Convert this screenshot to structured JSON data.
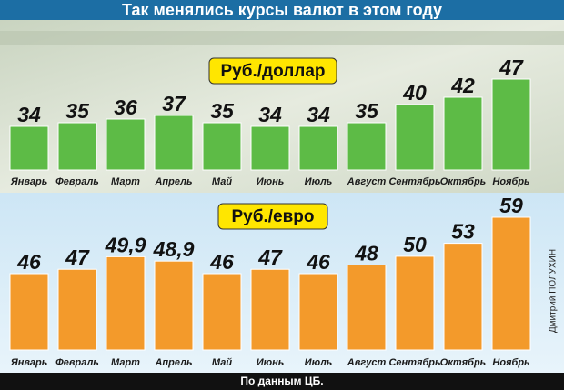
{
  "title": "Так менялись курсы валют в этом году",
  "source": "По данным ЦБ.",
  "credit": "Дмитрий ПОЛУХИН",
  "chart_data": [
    {
      "type": "bar",
      "title": "Руб./доллар",
      "categories": [
        "Январь",
        "Февраль",
        "Март",
        "Апрель",
        "Май",
        "Июнь",
        "Июль",
        "Август",
        "Сентябрь",
        "Октябрь",
        "Ноябрь"
      ],
      "values": [
        34,
        35,
        36,
        37,
        35,
        34,
        34,
        35,
        40,
        42,
        47
      ],
      "color": "#5dbb46"
    },
    {
      "type": "bar",
      "title": "Руб./евро",
      "categories": [
        "Январь",
        "Февраль",
        "Март",
        "Апрель",
        "Май",
        "Июнь",
        "Июль",
        "Август",
        "Сентябрь",
        "Октябрь",
        "Ноябрь"
      ],
      "values": [
        46,
        47,
        49.9,
        48.9,
        46,
        47,
        46,
        48,
        50,
        53,
        59
      ],
      "value_labels": [
        "46",
        "47",
        "49,9",
        "48,9",
        "46",
        "47",
        "46",
        "48",
        "50",
        "53",
        "59"
      ],
      "color": "#f39a2b"
    }
  ]
}
